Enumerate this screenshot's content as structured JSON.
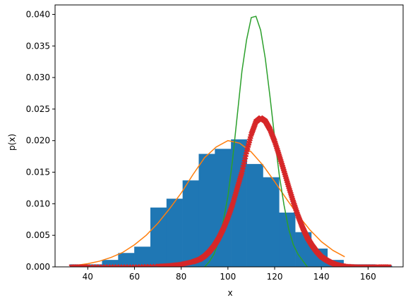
{
  "chart_data": {
    "type": "histogram+line+scatter",
    "xlabel": "x",
    "ylabel": "p(x)",
    "xlim": [
      26,
      175
    ],
    "ylim": [
      0,
      0.0415
    ],
    "xticks": [
      40,
      60,
      80,
      100,
      120,
      140,
      160
    ],
    "yticks": [
      0.0,
      0.005,
      0.01,
      0.015,
      0.02,
      0.025,
      0.03,
      0.035,
      0.04
    ],
    "grid": false,
    "colors": {
      "histogram": "#1f77b4",
      "normal_pdf": "#ff7f0e",
      "narrow_pdf": "#2ca02c",
      "scatter": "#d62728"
    },
    "histogram": {
      "edges": [
        32.4,
        39.2,
        46.1,
        53.0,
        59.9,
        66.8,
        73.7,
        80.6,
        87.5,
        94.4,
        101.3,
        108.1,
        115.0,
        121.9,
        128.8,
        135.7,
        142.6,
        149.5,
        156.4,
        163.3,
        170.2
      ],
      "values": [
        0.0004,
        0.0004,
        0.0011,
        0.0022,
        0.0032,
        0.0094,
        0.0108,
        0.0137,
        0.0179,
        0.0187,
        0.0202,
        0.0163,
        0.0142,
        0.0086,
        0.0055,
        0.0029,
        0.0011,
        0.0004,
        0.0004,
        0.0002
      ]
    },
    "series": [
      {
        "kind": "line",
        "x": [
          34,
          40,
          45,
          50,
          55,
          60,
          65,
          70,
          75,
          80,
          85,
          90,
          95,
          100,
          105,
          110,
          115,
          120,
          125,
          130,
          135,
          140,
          145,
          150
        ],
        "y": [
          0.0002,
          0.0005,
          0.0009,
          0.0015,
          0.0023,
          0.0035,
          0.005,
          0.0069,
          0.0092,
          0.0117,
          0.0146,
          0.0173,
          0.019,
          0.02,
          0.0196,
          0.0182,
          0.0161,
          0.0135,
          0.0108,
          0.0082,
          0.0059,
          0.004,
          0.0026,
          0.0016
        ]
      },
      {
        "kind": "line",
        "x": [
          90,
          92,
          94,
          96,
          98,
          100,
          102,
          104,
          106,
          108,
          110,
          112,
          114,
          116,
          118,
          120,
          122,
          124,
          126,
          128,
          130,
          132,
          134
        ],
        "y": [
          0.0,
          0.0008,
          0.002,
          0.004,
          0.0072,
          0.0112,
          0.017,
          0.024,
          0.031,
          0.036,
          0.0395,
          0.0397,
          0.0375,
          0.033,
          0.027,
          0.0205,
          0.0145,
          0.0098,
          0.006,
          0.0035,
          0.002,
          0.001,
          0.0
        ]
      },
      {
        "kind": "scatter",
        "x": [
          33,
          40,
          50,
          60,
          70,
          75,
          80,
          85,
          88,
          90,
          92,
          94,
          96,
          98,
          100,
          102,
          104,
          106,
          108,
          110,
          112,
          114,
          116,
          118,
          120,
          122,
          124,
          126,
          128,
          130,
          132,
          134,
          136,
          138,
          140,
          142,
          144,
          146,
          148,
          150,
          155,
          160,
          165,
          169
        ],
        "y": [
          0.0,
          0.0,
          0.0,
          0.0,
          0.0001,
          0.0002,
          0.0004,
          0.0008,
          0.0012,
          0.0017,
          0.0024,
          0.0033,
          0.0045,
          0.006,
          0.0078,
          0.0099,
          0.0125,
          0.015,
          0.0182,
          0.021,
          0.023,
          0.0236,
          0.0231,
          0.0218,
          0.0199,
          0.0176,
          0.0152,
          0.0127,
          0.0103,
          0.0081,
          0.0062,
          0.0046,
          0.0034,
          0.0024,
          0.0016,
          0.0011,
          0.0007,
          0.0004,
          0.0002,
          0.0001,
          0.0,
          0.0,
          0.0,
          0.0
        ]
      }
    ]
  }
}
